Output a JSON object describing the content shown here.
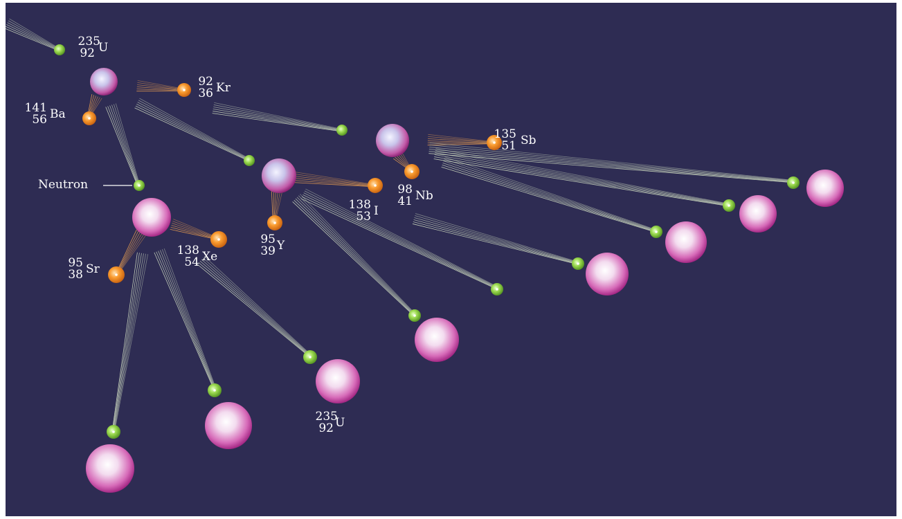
{
  "colors": {
    "background": "#2e2c53",
    "neutron": "#8fd14a",
    "fragment": "#f5922e",
    "uranium": "#e6b8e8",
    "trail_neutron": "#d9e8c8",
    "trail_fragment": "#f5a550"
  },
  "nuclides": {
    "u235_top": {
      "mass": "235",
      "atomic": "92",
      "symbol": "U"
    },
    "kr92": {
      "mass": "92",
      "atomic": "36",
      "symbol": "Kr"
    },
    "ba141": {
      "mass": "141",
      "atomic": "56",
      "symbol": "Ba"
    },
    "sb135": {
      "mass": "135",
      "atomic": "51",
      "symbol": "Sb"
    },
    "nb98": {
      "mass": "98",
      "atomic": "41",
      "symbol": "Nb"
    },
    "i138": {
      "mass": "138",
      "atomic": "53",
      "symbol": "I"
    },
    "y95": {
      "mass": "95",
      "atomic": "39",
      "symbol": "Y"
    },
    "xe138": {
      "mass": "138",
      "atomic": "54",
      "symbol": "Xe"
    },
    "sr95": {
      "mass": "95",
      "atomic": "38",
      "symbol": "Sr"
    },
    "u235_bottom": {
      "mass": "235",
      "atomic": "92",
      "symbol": "U"
    }
  },
  "labels": {
    "neutron": "Neutron"
  }
}
